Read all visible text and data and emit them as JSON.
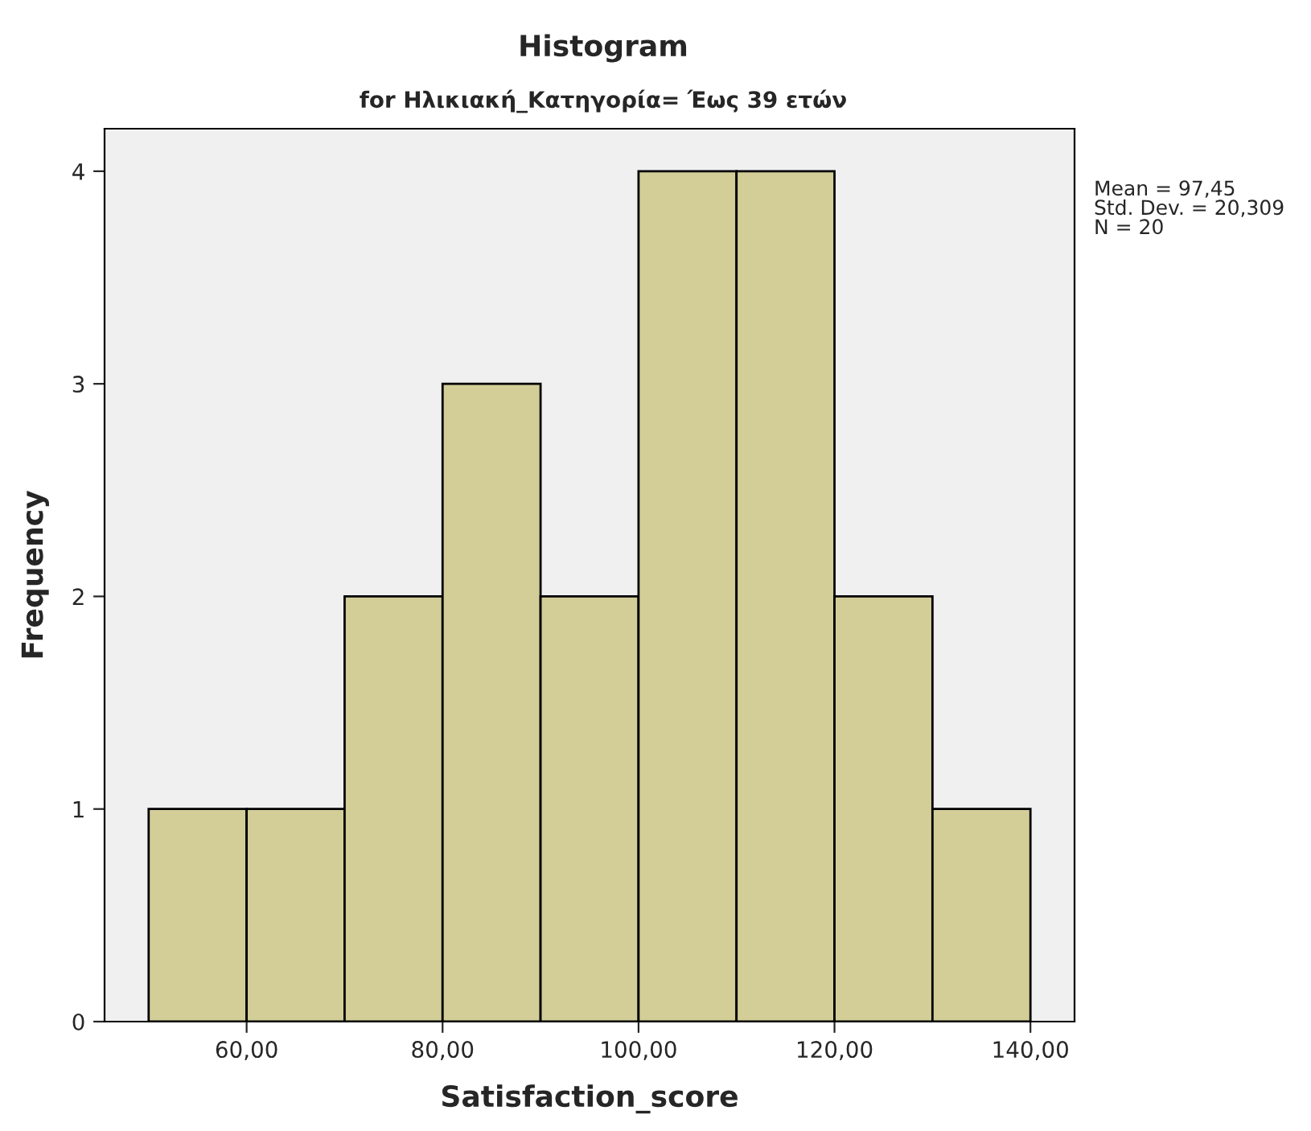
{
  "chart_data": {
    "type": "histogram",
    "title": "Histogram",
    "subtitle": "for Ηλικιακή_Κατηγορία= Έως 39 ετών",
    "xlabel": "Satisfaction_score",
    "ylabel": "Frequency",
    "bins": [
      50,
      60,
      70,
      80,
      90,
      100,
      110,
      120,
      130,
      140
    ],
    "values": [
      1,
      1,
      2,
      3,
      2,
      4,
      4,
      2,
      1
    ],
    "color": "#d3ce98",
    "xlim": [
      45.5,
      144.5
    ],
    "xticks": [
      {
        "value": 60,
        "label": "60,00"
      },
      {
        "value": 80,
        "label": "80,00"
      },
      {
        "value": 100,
        "label": "100,00"
      },
      {
        "value": 120,
        "label": "120,00"
      },
      {
        "value": 140,
        "label": "140,00"
      }
    ],
    "ylim": [
      0,
      4.2
    ],
    "yticks": [
      0,
      1,
      2,
      3,
      4
    ],
    "annotations": [
      "Mean = 97,45",
      "Std. Dev. = 20,309",
      "N = 20"
    ],
    "grid": false
  }
}
